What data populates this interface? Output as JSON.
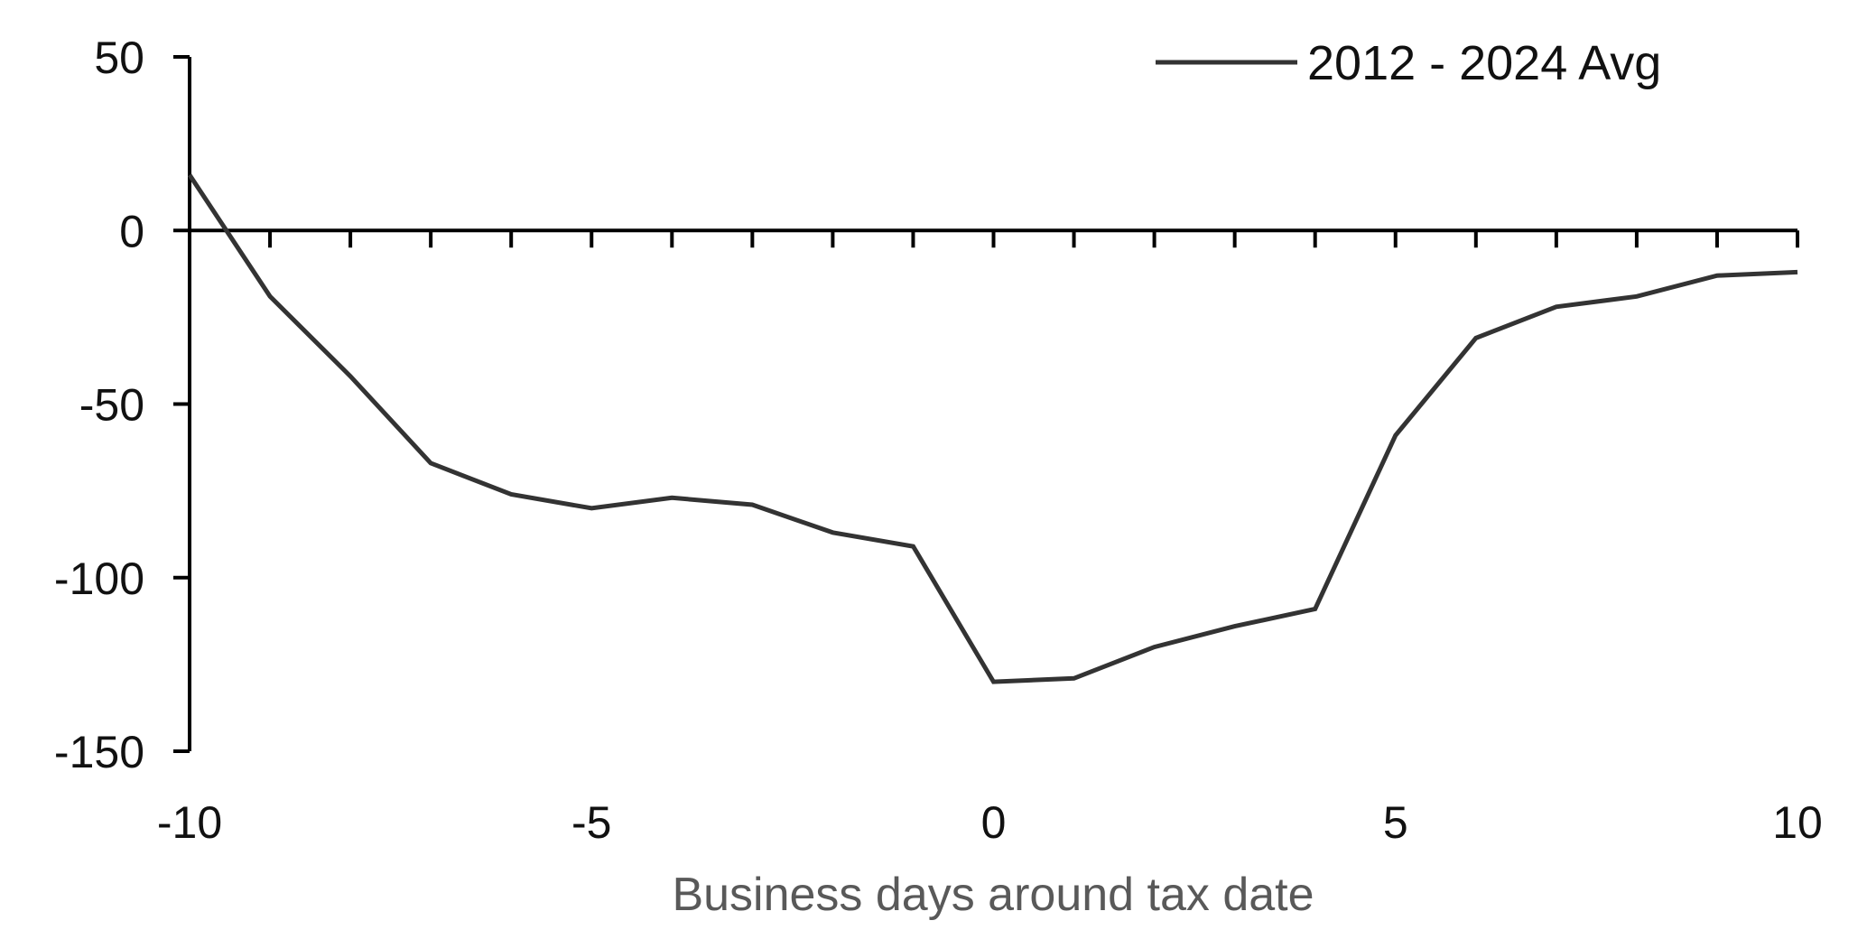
{
  "chart_data": {
    "type": "line",
    "title": "",
    "xlabel": "Business days around tax date",
    "ylabel": "",
    "xlim": [
      -10,
      10
    ],
    "ylim": [
      -150,
      50
    ],
    "x_tick_labels": [
      "-10",
      "-5",
      "0",
      "5",
      "10"
    ],
    "x_tick_values": [
      -10,
      -5,
      0,
      5,
      10
    ],
    "x_minor_ticks": [
      -9,
      -8,
      -7,
      -6,
      -5,
      -4,
      -3,
      -2,
      -1,
      0,
      1,
      2,
      3,
      4,
      5,
      6,
      7,
      8,
      9,
      10
    ],
    "y_tick_labels": [
      "50",
      "0",
      "-50",
      "-100",
      "-150"
    ],
    "y_tick_values": [
      50,
      0,
      -50,
      -100,
      -150
    ],
    "grid": false,
    "legend_position": "top-right",
    "colors": {
      "series_line": "#333333",
      "axis": "#000000",
      "tick_text": "#111111",
      "axis_title": "#595959"
    },
    "x": [
      -10,
      -9,
      -8,
      -7,
      -6,
      -5,
      -4,
      -3,
      -2,
      -1,
      0,
      1,
      2,
      3,
      4,
      5,
      6,
      7,
      8,
      9,
      10
    ],
    "series": [
      {
        "name": "2012 - 2024 Avg",
        "values": [
          16,
          -19,
          -42,
          -67,
          -76,
          -80,
          -77,
          -79,
          -87,
          -91,
          -130,
          -129,
          -120,
          -114,
          -109,
          -59,
          -31,
          -22,
          -19,
          -13,
          -12
        ]
      }
    ]
  }
}
